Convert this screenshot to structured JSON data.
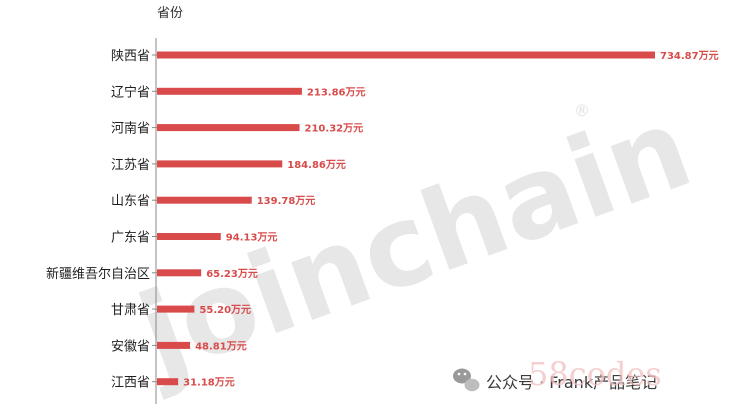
{
  "chart_data": {
    "type": "bar",
    "orientation": "horizontal",
    "ylabel": "省份",
    "categories": [
      "陕西省",
      "辽宁省",
      "河南省",
      "江苏省",
      "山东省",
      "广东省",
      "新疆维吾尔自治区",
      "甘肃省",
      "安徽省",
      "江西省"
    ],
    "values": [
      734.87,
      213.86,
      210.32,
      184.86,
      139.78,
      94.13,
      65.23,
      55.2,
      48.81,
      31.18
    ],
    "value_labels": [
      "734.87万元",
      "213.86万元",
      "210.32万元",
      "184.86万元",
      "139.78万元",
      "94.13万元",
      "65.23万元",
      "55.20万元",
      "48.81万元",
      "31.18万元"
    ],
    "xlim": [
      0,
      740
    ],
    "grid": false,
    "legend": "none",
    "bar_color": "#d94b4b"
  },
  "watermarks": {
    "brand": "joinchain",
    "registered_mark": "®",
    "site": "58codes",
    "account": "公众号 · Frank产品笔记",
    "account_icon": "wechat-icon"
  }
}
